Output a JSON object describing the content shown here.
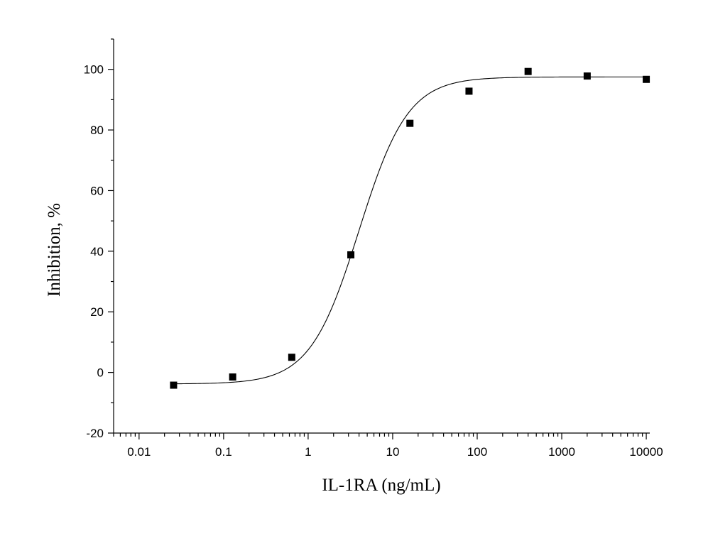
{
  "chart_data": {
    "type": "scatter",
    "title": "",
    "xlabel": "IL-1RA (ng/mL)",
    "ylabel": "Inhibition, %",
    "x_scale": "log",
    "xlim": [
      0.005,
      11000
    ],
    "ylim": [
      -20,
      110
    ],
    "x_ticks": [
      0.01,
      0.1,
      1,
      10,
      100,
      1000,
      10000
    ],
    "x_tick_labels": [
      "0.01",
      "0.1",
      "1",
      "10",
      "100",
      "1000",
      "10000"
    ],
    "y_ticks": [
      -20,
      0,
      20,
      40,
      60,
      80,
      100
    ],
    "y_tick_labels": [
      "-20",
      "0",
      "20",
      "40",
      "60",
      "80",
      "100"
    ],
    "grid": false,
    "legend": "none",
    "series": [
      {
        "marker": "square",
        "color": "#000000",
        "x": [
          0.0256,
          0.128,
          0.64,
          3.2,
          16,
          80,
          400,
          2000,
          10000
        ],
        "y": [
          -4.2,
          -1.5,
          5.0,
          38.8,
          82.2,
          92.8,
          99.3,
          97.8,
          96.7
        ]
      }
    ],
    "fit": {
      "type": "logistic",
      "color": "#000000",
      "bottom": -3.8,
      "top": 97.5,
      "ec50": 4.0,
      "hill": 1.5,
      "x_range": [
        0.0256,
        10000
      ]
    }
  }
}
